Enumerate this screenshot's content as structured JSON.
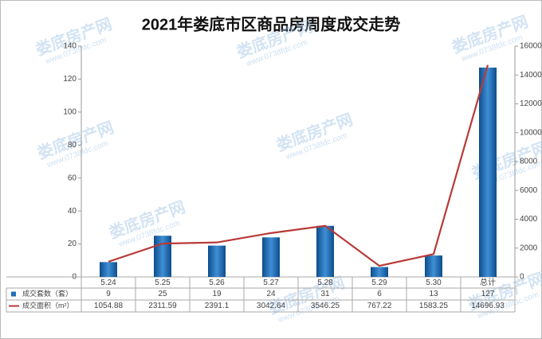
{
  "chart_data": {
    "type": "bar_line",
    "title": "2021年娄底市区商品房周度成交走势",
    "watermark": {
      "name": "娄底房产网",
      "url": "www.0738fdc.com"
    },
    "categories": [
      "5.24",
      "5.25",
      "5.26",
      "5.27",
      "5.28",
      "5.29",
      "5.30",
      "总计"
    ],
    "series": [
      {
        "name": "成交套数（套）",
        "type": "bar",
        "color": "#1f6fb8",
        "values": [
          9,
          25,
          19,
          24,
          31,
          6,
          13,
          127
        ]
      },
      {
        "name": "成交面积（m²）",
        "type": "line",
        "axis": "y2",
        "color": "#b83a36",
        "values": [
          1054.88,
          2311.59,
          2391.1,
          3042.64,
          3546.25,
          767.22,
          1583.25,
          14696.93
        ]
      }
    ],
    "ylim": [
      0,
      140
    ],
    "yticks": [
      0,
      20,
      40,
      60,
      80,
      100,
      120,
      140
    ],
    "y2lim": [
      0,
      16000
    ],
    "y2ticks": [
      0,
      2000,
      4000,
      6000,
      8000,
      10000,
      12000,
      14000,
      16000
    ],
    "grid": false
  }
}
